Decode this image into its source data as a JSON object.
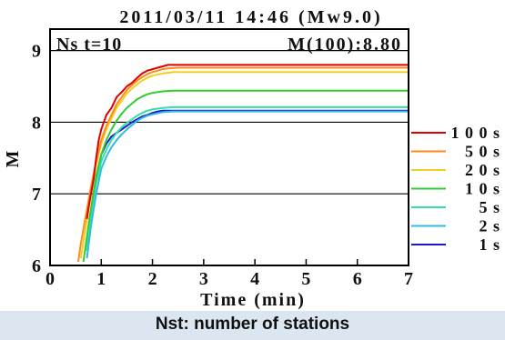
{
  "caption": "Nst: number of stations",
  "chart_data": {
    "type": "line",
    "title": "2011/03/11 14:46 (Mw9.0)",
    "annotation_left": "Ns t=10",
    "annotation_right": "M(100):8.80",
    "xlabel": "Time (min)",
    "ylabel": "M",
    "xlim": [
      0,
      7
    ],
    "ylim": [
      6,
      9.3
    ],
    "x_ticks": [
      0,
      1,
      2,
      3,
      4,
      5,
      6,
      7
    ],
    "y_ticks": [
      6,
      7,
      8,
      9
    ],
    "x_tick_labels": [
      "0",
      "1",
      "2",
      "3",
      "4",
      "5",
      "6",
      "7"
    ],
    "y_tick_labels": [
      "6",
      "7",
      "8",
      "9"
    ],
    "grid": "horizontal",
    "legend_position": "right",
    "series": [
      {
        "name": "1 0 0 s",
        "color": "#dd0000",
        "x": [
          0.72,
          0.75,
          0.8,
          0.85,
          0.9,
          0.95,
          1.0,
          1.1,
          1.2,
          1.3,
          1.4,
          1.5,
          1.6,
          1.7,
          1.8,
          1.9,
          2.0,
          2.1,
          2.2,
          2.3,
          2.4,
          2.6,
          3.0,
          4.0,
          5.0,
          6.0,
          7.0
        ],
        "y": [
          6.65,
          6.8,
          7.0,
          7.2,
          7.5,
          7.75,
          7.9,
          8.1,
          8.2,
          8.35,
          8.42,
          8.5,
          8.55,
          8.62,
          8.68,
          8.72,
          8.74,
          8.76,
          8.78,
          8.8,
          8.8,
          8.8,
          8.8,
          8.8,
          8.8,
          8.8,
          8.8
        ]
      },
      {
        "name": "5 0 s",
        "color": "#ff8c1a",
        "x": [
          0.55,
          0.6,
          0.7,
          0.8,
          0.9,
          1.0,
          1.1,
          1.2,
          1.3,
          1.4,
          1.5,
          1.6,
          1.7,
          1.8,
          1.9,
          2.0,
          2.1,
          2.2,
          2.3,
          2.5,
          3.0,
          4.0,
          5.0,
          6.0,
          7.0
        ],
        "y": [
          6.05,
          6.3,
          6.7,
          7.1,
          7.45,
          7.75,
          7.95,
          8.1,
          8.25,
          8.35,
          8.45,
          8.52,
          8.58,
          8.63,
          8.67,
          8.7,
          8.72,
          8.74,
          8.75,
          8.76,
          8.76,
          8.76,
          8.76,
          8.76,
          8.76
        ]
      },
      {
        "name": "2 0 s",
        "color": "#f0d020",
        "x": [
          0.6,
          0.7,
          0.8,
          0.9,
          1.0,
          1.1,
          1.2,
          1.3,
          1.4,
          1.5,
          1.6,
          1.7,
          1.8,
          1.9,
          2.0,
          2.2,
          2.4,
          3.0,
          4.0,
          5.0,
          6.0,
          7.0
        ],
        "y": [
          6.1,
          6.55,
          7.0,
          7.4,
          7.7,
          7.9,
          8.05,
          8.2,
          8.3,
          8.4,
          8.47,
          8.53,
          8.58,
          8.62,
          8.65,
          8.68,
          8.7,
          8.7,
          8.7,
          8.7,
          8.7,
          8.7
        ]
      },
      {
        "name": "1 0 s",
        "color": "#33cc33",
        "x": [
          0.65,
          0.7,
          0.8,
          0.9,
          1.0,
          1.1,
          1.2,
          1.3,
          1.4,
          1.5,
          1.6,
          1.7,
          1.8,
          1.9,
          2.0,
          2.2,
          2.4,
          3.0,
          4.0,
          5.0,
          6.0,
          7.0
        ],
        "y": [
          6.05,
          6.3,
          6.8,
          7.25,
          7.55,
          7.75,
          7.9,
          8.02,
          8.12,
          8.2,
          8.26,
          8.32,
          8.36,
          8.39,
          8.41,
          8.43,
          8.44,
          8.44,
          8.44,
          8.44,
          8.44,
          8.44
        ]
      },
      {
        "name": "5 s",
        "color": "#33e0a8",
        "x": [
          0.7,
          0.8,
          0.9,
          1.0,
          1.1,
          1.2,
          1.3,
          1.4,
          1.5,
          1.6,
          1.7,
          1.8,
          1.9,
          2.0,
          2.2,
          2.4,
          3.0,
          4.0,
          5.0,
          6.0,
          7.0
        ],
        "y": [
          6.2,
          6.7,
          7.15,
          7.45,
          7.62,
          7.75,
          7.85,
          7.93,
          7.99,
          8.04,
          8.09,
          8.13,
          8.16,
          8.18,
          8.2,
          8.21,
          8.21,
          8.21,
          8.21,
          8.21,
          8.21
        ]
      },
      {
        "name": "2 s",
        "color": "#33b8e8",
        "x": [
          0.72,
          0.8,
          0.9,
          1.0,
          1.1,
          1.2,
          1.3,
          1.4,
          1.5,
          1.6,
          1.7,
          1.8,
          1.9,
          2.0,
          2.2,
          2.4,
          3.0,
          4.0,
          5.0,
          6.0,
          7.0
        ],
        "y": [
          6.1,
          6.55,
          7.0,
          7.35,
          7.52,
          7.65,
          7.75,
          7.83,
          7.9,
          7.96,
          8.02,
          8.06,
          8.09,
          8.11,
          8.14,
          8.15,
          8.15,
          8.15,
          8.15,
          8.15,
          8.15
        ]
      },
      {
        "name": "1 s",
        "color": "#1a1acc",
        "x": [
          0.75,
          0.8,
          0.9,
          1.0,
          1.1,
          1.2,
          1.3,
          1.4,
          1.5,
          1.6,
          1.7,
          1.8,
          1.9,
          2.0,
          2.1,
          2.2,
          2.4,
          3.0,
          4.0,
          5.0,
          6.0,
          7.0
        ],
        "y": [
          6.3,
          6.7,
          7.2,
          7.55,
          7.7,
          7.8,
          7.85,
          7.9,
          7.95,
          8.0,
          8.04,
          8.08,
          8.1,
          8.13,
          8.15,
          8.16,
          8.16,
          8.16,
          8.16,
          8.16,
          8.16,
          8.16
        ]
      }
    ]
  }
}
